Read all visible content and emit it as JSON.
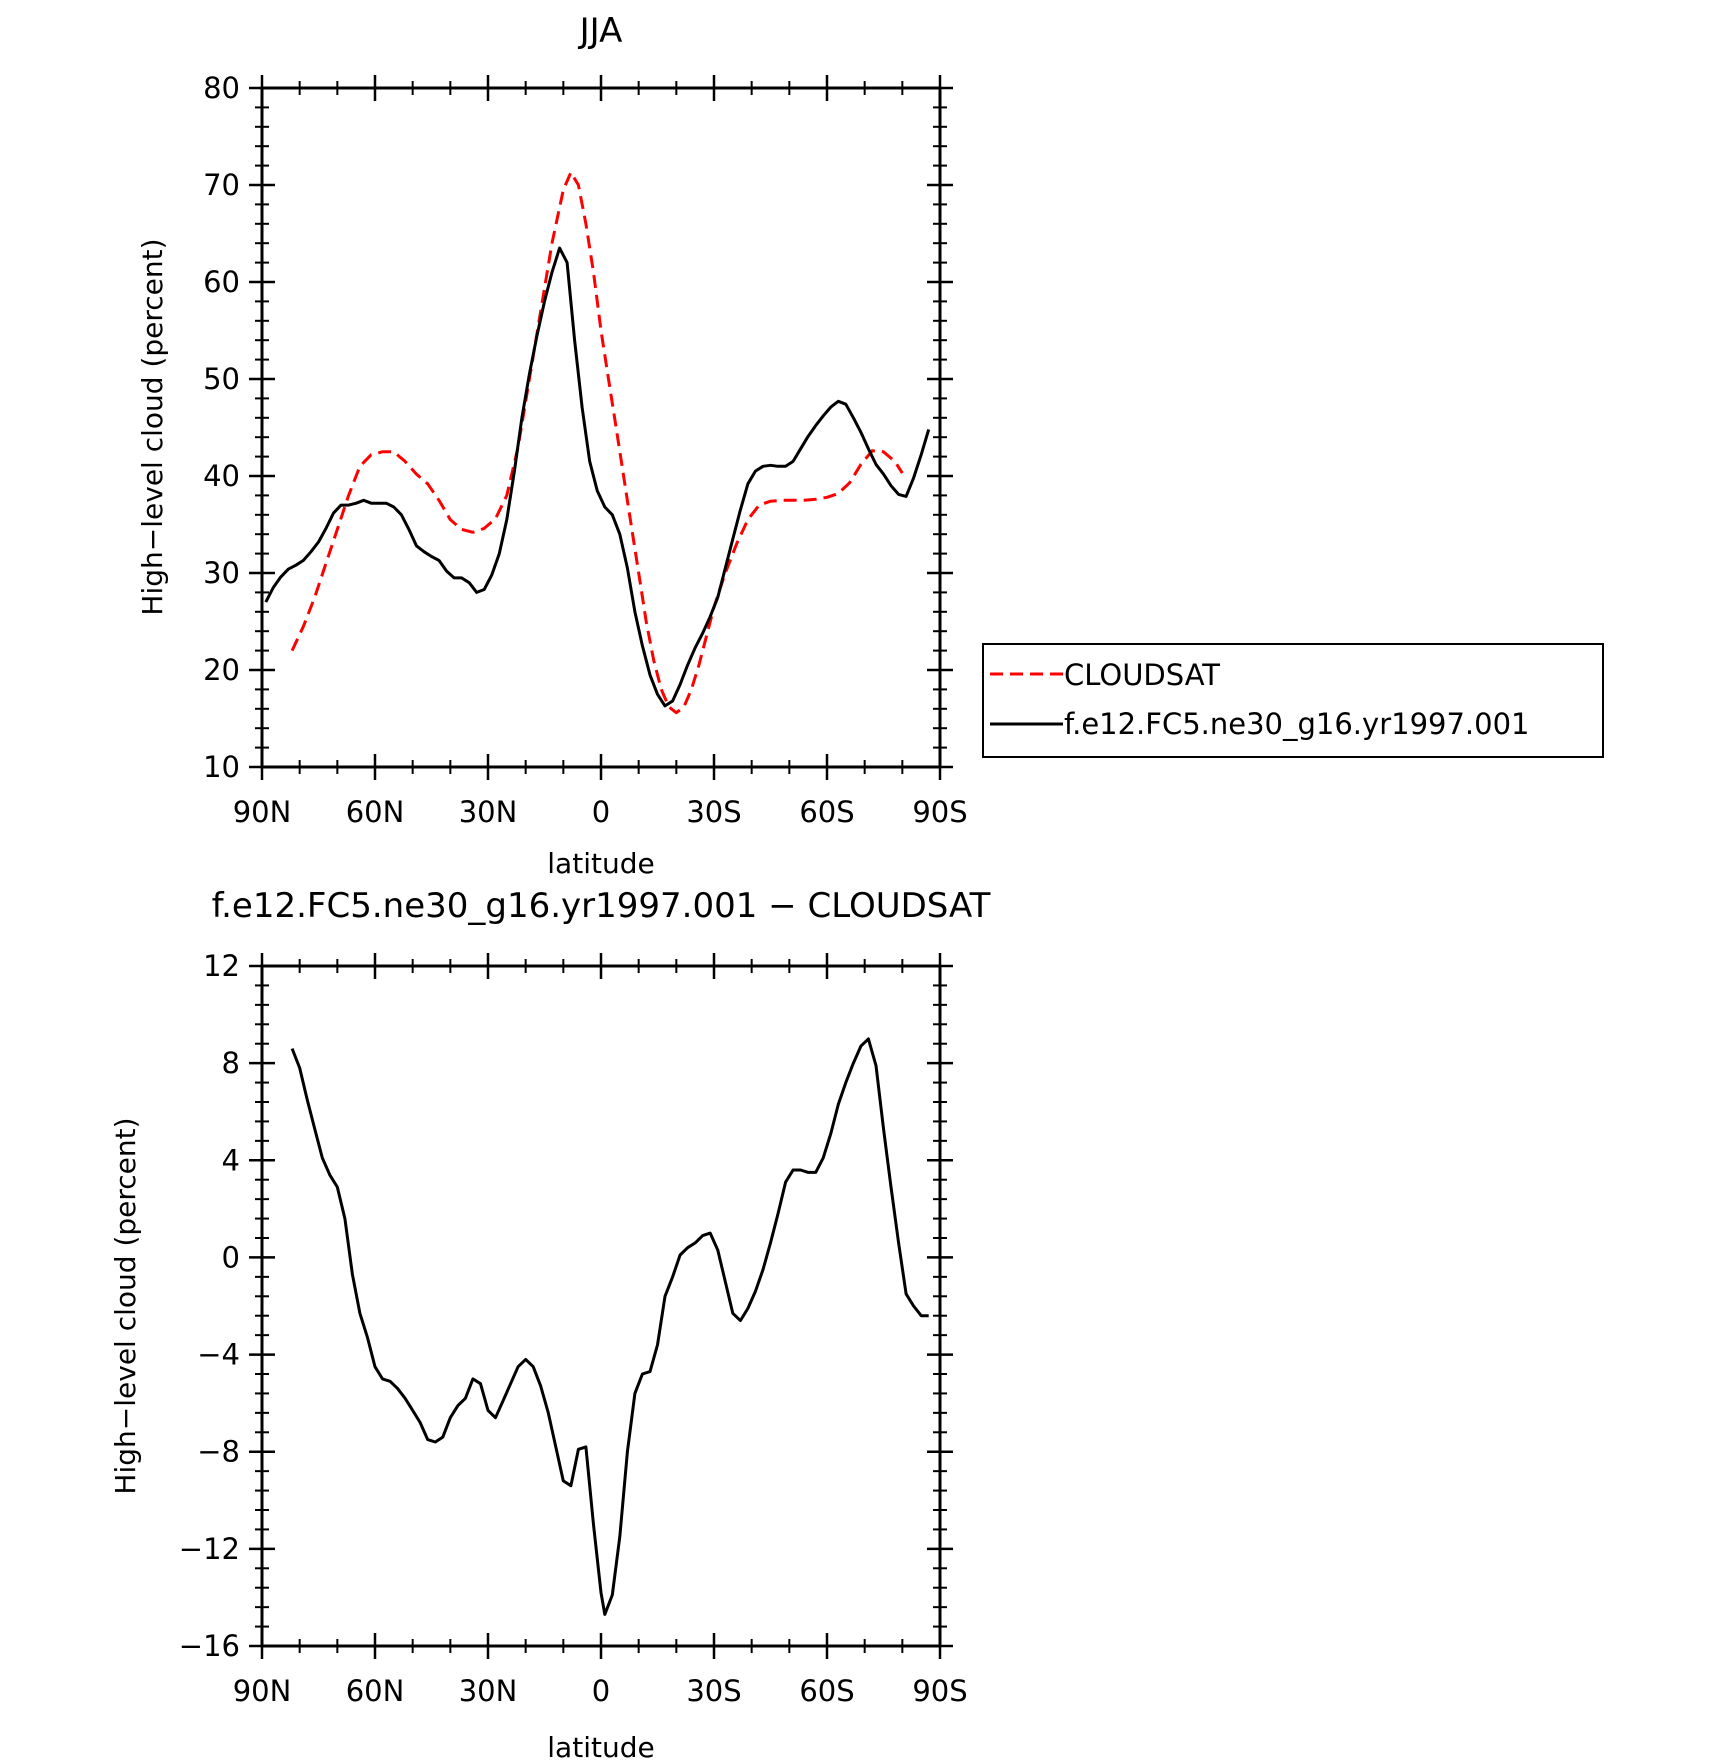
{
  "chart_data": [
    {
      "type": "line",
      "title": "JJA",
      "xlabel": "latitude",
      "ylabel": "High−level cloud (percent)",
      "xlim": [
        90,
        -90
      ],
      "ylim": [
        10,
        80
      ],
      "x_ticks": [
        90,
        60,
        30,
        0,
        -30,
        -60,
        -90
      ],
      "x_tick_labels": [
        "90N",
        "60N",
        "30N",
        "0",
        "30S",
        "60S",
        "90S"
      ],
      "y_ticks": [
        10,
        20,
        30,
        40,
        50,
        60,
        70,
        80
      ],
      "y_tick_labels": [
        "10",
        "20",
        "30",
        "40",
        "50",
        "60",
        "70",
        "80"
      ],
      "legend": {
        "placement": "right-outside"
      },
      "series": [
        {
          "name": "CLOUDSAT",
          "color": "#ff0000",
          "dash": "dashed",
          "points": [
            [
              82,
              22
            ],
            [
              79,
              24.5
            ],
            [
              76,
              27.5
            ],
            [
              73,
              31
            ],
            [
              70,
              34.5
            ],
            [
              67,
              38
            ],
            [
              64,
              41
            ],
            [
              61,
              42.2
            ],
            [
              58,
              42.5
            ],
            [
              55,
              42.5
            ],
            [
              52,
              41.5
            ],
            [
              49,
              40.2
            ],
            [
              46,
              39.2
            ],
            [
              43,
              37.5
            ],
            [
              40,
              35.5
            ],
            [
              37,
              34.5
            ],
            [
              34,
              34.2
            ],
            [
              31,
              34.6
            ],
            [
              28,
              35.6
            ],
            [
              25,
              38
            ],
            [
              22,
              43
            ],
            [
              19,
              50
            ],
            [
              16,
              57
            ],
            [
              13,
              64
            ],
            [
              10,
              69.5
            ],
            [
              8,
              71.3
            ],
            [
              6,
              70
            ],
            [
              4,
              66
            ],
            [
              2,
              61
            ],
            [
              0,
              55
            ],
            [
              -2,
              50
            ],
            [
              -4,
              45
            ],
            [
              -6,
              40
            ],
            [
              -8,
              35
            ],
            [
              -10,
              30
            ],
            [
              -12,
              25
            ],
            [
              -14,
              21
            ],
            [
              -16,
              18
            ],
            [
              -18,
              16.2
            ],
            [
              -20,
              15.6
            ],
            [
              -22,
              16.2
            ],
            [
              -24,
              18
            ],
            [
              -26,
              20.5
            ],
            [
              -28,
              23.5
            ],
            [
              -30,
              26.5
            ],
            [
              -33,
              30
            ],
            [
              -36,
              33
            ],
            [
              -39,
              35.5
            ],
            [
              -42,
              37
            ],
            [
              -45,
              37.4
            ],
            [
              -48,
              37.5
            ],
            [
              -51,
              37.5
            ],
            [
              -54,
              37.5
            ],
            [
              -57,
              37.6
            ],
            [
              -60,
              37.8
            ],
            [
              -63,
              38.2
            ],
            [
              -66,
              39.3
            ],
            [
              -69,
              41.2
            ],
            [
              -72,
              42.6
            ],
            [
              -75,
              42.5
            ],
            [
              -78,
              41.5
            ],
            [
              -80,
              40.3
            ]
          ]
        },
        {
          "name": "f.e12.FC5.ne30_g16.yr1997.001",
          "color": "#000000",
          "dash": "solid",
          "points": [
            [
              89,
              27
            ],
            [
              87,
              28.5
            ],
            [
              85,
              29.6
            ],
            [
              83,
              30.4
            ],
            [
              81,
              30.8
            ],
            [
              79,
              31.3
            ],
            [
              77,
              32.2
            ],
            [
              75,
              33.2
            ],
            [
              73,
              34.6
            ],
            [
              71,
              36.2
            ],
            [
              69,
              37
            ],
            [
              67,
              37
            ],
            [
              65,
              37.2
            ],
            [
              63,
              37.5
            ],
            [
              61,
              37.2
            ],
            [
              59,
              37.2
            ],
            [
              57,
              37.2
            ],
            [
              55,
              36.8
            ],
            [
              53,
              36
            ],
            [
              51,
              34.5
            ],
            [
              49,
              32.8
            ],
            [
              47,
              32.2
            ],
            [
              45,
              31.7
            ],
            [
              43,
              31.3
            ],
            [
              41,
              30.2
            ],
            [
              39,
              29.5
            ],
            [
              37,
              29.5
            ],
            [
              35,
              29
            ],
            [
              33,
              28
            ],
            [
              31,
              28.3
            ],
            [
              29,
              29.8
            ],
            [
              27,
              32
            ],
            [
              25,
              35.5
            ],
            [
              23,
              40.5
            ],
            [
              21,
              46
            ],
            [
              19,
              50.5
            ],
            [
              17,
              54.5
            ],
            [
              15,
              58
            ],
            [
              13,
              61
            ],
            [
              11,
              63.5
            ],
            [
              9,
              62
            ],
            [
              7,
              54
            ],
            [
              5,
              47
            ],
            [
              3,
              41.5
            ],
            [
              1,
              38.5
            ],
            [
              -1,
              36.8
            ],
            [
              -3,
              36
            ],
            [
              -5,
              34
            ],
            [
              -7,
              30.5
            ],
            [
              -9,
              26
            ],
            [
              -11,
              22.5
            ],
            [
              -13,
              19.5
            ],
            [
              -15,
              17.5
            ],
            [
              -17,
              16.3
            ],
            [
              -19,
              16.8
            ],
            [
              -21,
              18.5
            ],
            [
              -23,
              20.5
            ],
            [
              -25,
              22.3
            ],
            [
              -27,
              23.8
            ],
            [
              -29,
              25.5
            ],
            [
              -31,
              27.5
            ],
            [
              -33,
              30.5
            ],
            [
              -35,
              33.5
            ],
            [
              -37,
              36.5
            ],
            [
              -39,
              39.2
            ],
            [
              -41,
              40.5
            ],
            [
              -43,
              41
            ],
            [
              -45,
              41.1
            ],
            [
              -47,
              41
            ],
            [
              -49,
              41
            ],
            [
              -51,
              41.5
            ],
            [
              -53,
              42.8
            ],
            [
              -55,
              44.1
            ],
            [
              -57,
              45.2
            ],
            [
              -59,
              46.2
            ],
            [
              -61,
              47.1
            ],
            [
              -63,
              47.7
            ],
            [
              -65,
              47.4
            ],
            [
              -67,
              46
            ],
            [
              -69,
              44.5
            ],
            [
              -71,
              42.8
            ],
            [
              -73,
              41.2
            ],
            [
              -75,
              40.2
            ],
            [
              -77,
              39
            ],
            [
              -79,
              38.1
            ],
            [
              -81,
              37.9
            ],
            [
              -83,
              39.8
            ],
            [
              -85,
              42.2
            ],
            [
              -87,
              44.8
            ]
          ]
        }
      ]
    },
    {
      "type": "line",
      "title": "f.e12.FC5.ne30_g16.yr1997.001 − CLOUDSAT",
      "xlabel": "latitude",
      "ylabel": "High−level cloud (percent)",
      "xlim": [
        90,
        -90
      ],
      "ylim": [
        -16,
        12
      ],
      "x_ticks": [
        90,
        60,
        30,
        0,
        -30,
        -60,
        -90
      ],
      "x_tick_labels": [
        "90N",
        "60N",
        "30N",
        "0",
        "30S",
        "60S",
        "90S"
      ],
      "y_ticks": [
        -16,
        -12,
        -8,
        -4,
        0,
        4,
        8,
        12
      ],
      "y_tick_labels": [
        "−16",
        "−12",
        "−8",
        "−4",
        "0",
        "4",
        "8",
        "12"
      ],
      "series": [
        {
          "color": "#000000",
          "dash": "solid",
          "points": [
            [
              82,
              8.6
            ],
            [
              80,
              7.8
            ],
            [
              78,
              6.5
            ],
            [
              76,
              5.3
            ],
            [
              74,
              4.1
            ],
            [
              72,
              3.4
            ],
            [
              70,
              2.9
            ],
            [
              68,
              1.6
            ],
            [
              66,
              -0.7
            ],
            [
              64,
              -2.3
            ],
            [
              62,
              -3.3
            ],
            [
              60,
              -4.5
            ],
            [
              58,
              -5
            ],
            [
              56,
              -5.1
            ],
            [
              54,
              -5.4
            ],
            [
              52,
              -5.8
            ],
            [
              50,
              -6.3
            ],
            [
              48,
              -6.8
            ],
            [
              46,
              -7.5
            ],
            [
              44,
              -7.6
            ],
            [
              42,
              -7.4
            ],
            [
              40,
              -6.6
            ],
            [
              38,
              -6.1
            ],
            [
              36,
              -5.8
            ],
            [
              34,
              -5
            ],
            [
              32,
              -5.2
            ],
            [
              30,
              -6.3
            ],
            [
              28,
              -6.6
            ],
            [
              26,
              -5.9
            ],
            [
              24,
              -5.2
            ],
            [
              22,
              -4.5
            ],
            [
              20,
              -4.2
            ],
            [
              18,
              -4.5
            ],
            [
              16,
              -5.3
            ],
            [
              14,
              -6.4
            ],
            [
              12,
              -7.8
            ],
            [
              10,
              -9.2
            ],
            [
              8,
              -9.4
            ],
            [
              6,
              -7.9
            ],
            [
              4,
              -7.8
            ],
            [
              2,
              -11
            ],
            [
              0,
              -13.8
            ],
            [
              -1,
              -14.7
            ],
            [
              -3,
              -13.9
            ],
            [
              -5,
              -11.5
            ],
            [
              -7,
              -8
            ],
            [
              -9,
              -5.6
            ],
            [
              -11,
              -4.8
            ],
            [
              -13,
              -4.7
            ],
            [
              -15,
              -3.6
            ],
            [
              -17,
              -1.6
            ],
            [
              -19,
              -0.8
            ],
            [
              -21,
              0.1
            ],
            [
              -23,
              0.4
            ],
            [
              -25,
              0.6
            ],
            [
              -27,
              0.9
            ],
            [
              -29,
              1
            ],
            [
              -31,
              0.3
            ],
            [
              -33,
              -1
            ],
            [
              -35,
              -2.3
            ],
            [
              -37,
              -2.6
            ],
            [
              -39,
              -2.1
            ],
            [
              -41,
              -1.4
            ],
            [
              -43,
              -0.5
            ],
            [
              -45,
              0.6
            ],
            [
              -47,
              1.8
            ],
            [
              -49,
              3.1
            ],
            [
              -51,
              3.6
            ],
            [
              -53,
              3.6
            ],
            [
              -55,
              3.5
            ],
            [
              -57,
              3.5
            ],
            [
              -59,
              4.1
            ],
            [
              -61,
              5.1
            ],
            [
              -63,
              6.3
            ],
            [
              -65,
              7.2
            ],
            [
              -67,
              8
            ],
            [
              -69,
              8.7
            ],
            [
              -71,
              9
            ],
            [
              -73,
              7.9
            ],
            [
              -75,
              5.3
            ],
            [
              -77,
              2.9
            ],
            [
              -79,
              0.6
            ],
            [
              -81,
              -1.5
            ],
            [
              -83,
              -2
            ],
            [
              -85,
              -2.4
            ],
            [
              -87,
              -2.4
            ]
          ]
        }
      ]
    }
  ]
}
